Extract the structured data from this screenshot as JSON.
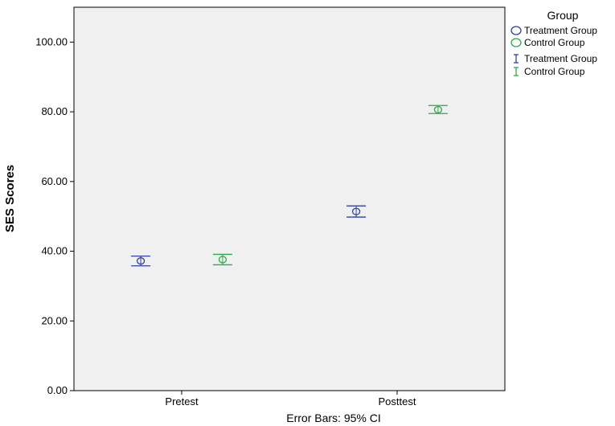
{
  "chart_data": {
    "type": "scatter",
    "ylabel": "SES Scores",
    "footnote": "Error Bars: 95% CI",
    "categories": [
      "Pretest",
      "Posttest"
    ],
    "ylim": [
      0,
      110
    ],
    "yticks": [
      "0.00",
      "20.00",
      "40.00",
      "60.00",
      "80.00",
      "100.00"
    ],
    "legend": {
      "title": "Group",
      "position": "right",
      "entries": [
        {
          "marker": "circle",
          "label": "Treatment Group",
          "color": "#2e3f9e"
        },
        {
          "marker": "circle",
          "label": "Control Group",
          "color": "#2ea84a"
        },
        {
          "marker": "error-bar",
          "label": "Treatment Group",
          "color": "#2e3f9e"
        },
        {
          "marker": "error-bar",
          "label": "Control Group",
          "color": "#2ea84a"
        }
      ]
    },
    "series": [
      {
        "name": "Treatment Group",
        "color": "#2e3f9e",
        "values": [
          37.2,
          51.4
        ],
        "ci_low": [
          35.8,
          49.8
        ],
        "ci_high": [
          38.6,
          53.0
        ]
      },
      {
        "name": "Control Group",
        "color": "#2ea84a",
        "values": [
          37.6,
          80.6
        ],
        "ci_low": [
          36.1,
          79.5
        ],
        "ci_high": [
          39.1,
          81.8
        ]
      }
    ],
    "grid": false,
    "plot_background": "#f0f0f0"
  }
}
